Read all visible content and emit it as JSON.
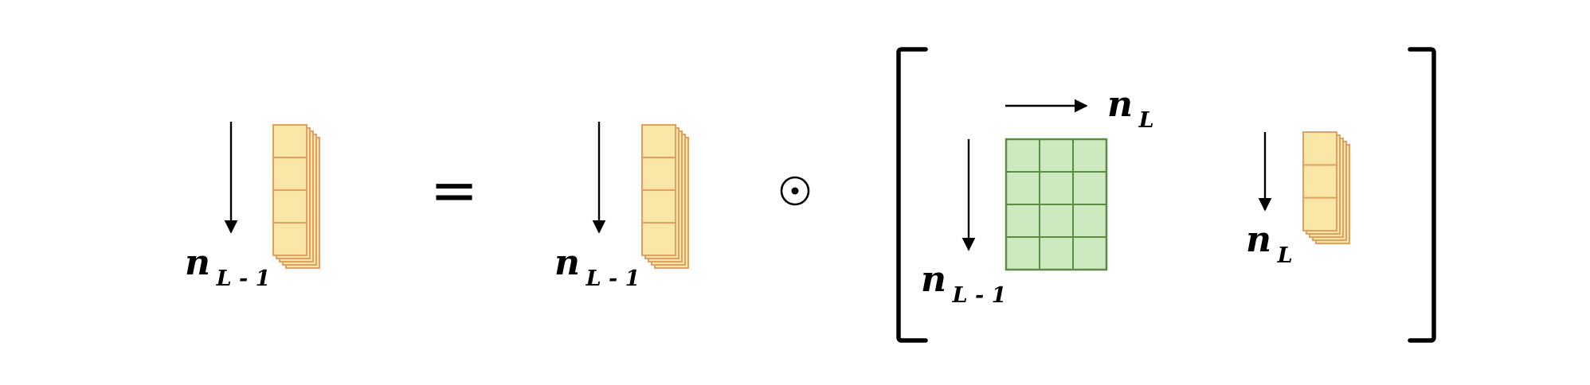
{
  "equation": {
    "lhs": {
      "label": {
        "main": "n",
        "sub": "L - 1"
      }
    },
    "equals_sign": "=",
    "rhs_vector": {
      "label": {
        "main": "n",
        "sub": "L - 1"
      }
    },
    "operator": "⊙",
    "bracket": {
      "matrix": {
        "rows": 4,
        "cols": 3,
        "row_label": {
          "main": "n",
          "sub": "L - 1"
        },
        "col_label": {
          "main": "n",
          "sub": "L"
        }
      },
      "vector": {
        "label": {
          "main": "n",
          "sub": "L"
        }
      }
    }
  },
  "colors": {
    "vector_fill": "#fae7a7",
    "vector_stroke": "#e1a061",
    "matrix_fill": "#cde9c0",
    "matrix_stroke": "#5c8c43",
    "ink": "#000000"
  }
}
